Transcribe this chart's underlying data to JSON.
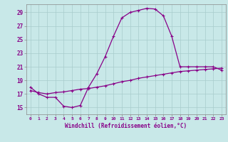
{
  "xlabel": "Windchill (Refroidissement éolien,°C)",
  "background_color": "#c8e8e8",
  "grid_color": "#a8cccc",
  "line_color": "#880088",
  "x_ticks": [
    0,
    1,
    2,
    3,
    4,
    5,
    6,
    7,
    8,
    9,
    10,
    11,
    12,
    13,
    14,
    15,
    16,
    17,
    18,
    19,
    20,
    21,
    22,
    23
  ],
  "y_ticks": [
    15,
    17,
    19,
    21,
    23,
    25,
    27,
    29
  ],
  "ylim": [
    14.0,
    30.2
  ],
  "xlim": [
    -0.5,
    23.5
  ],
  "curve1_x": [
    0,
    1,
    2,
    3,
    4,
    5,
    6,
    7,
    8,
    9,
    10,
    11,
    12,
    13,
    14,
    15,
    16,
    17,
    18,
    19,
    20,
    21,
    22,
    23
  ],
  "curve1_y": [
    18.0,
    17.0,
    16.5,
    16.5,
    15.2,
    15.0,
    15.3,
    18.0,
    20.0,
    22.5,
    25.5,
    28.2,
    29.0,
    29.3,
    29.6,
    29.5,
    28.5,
    25.5,
    21.0,
    21.0,
    21.0,
    21.0,
    21.0,
    20.5
  ],
  "curve2_x": [
    0,
    1,
    2,
    3,
    4,
    5,
    6,
    7,
    8,
    9,
    10,
    11,
    12,
    13,
    14,
    15,
    16,
    17,
    18,
    19,
    20,
    21,
    22,
    23
  ],
  "curve2_y": [
    17.5,
    17.2,
    17.0,
    17.2,
    17.3,
    17.5,
    17.7,
    17.8,
    18.0,
    18.2,
    18.5,
    18.8,
    19.0,
    19.3,
    19.5,
    19.7,
    19.9,
    20.1,
    20.3,
    20.4,
    20.5,
    20.6,
    20.7,
    20.8
  ],
  "spine_color": "#888888",
  "tick_color": "#888888"
}
